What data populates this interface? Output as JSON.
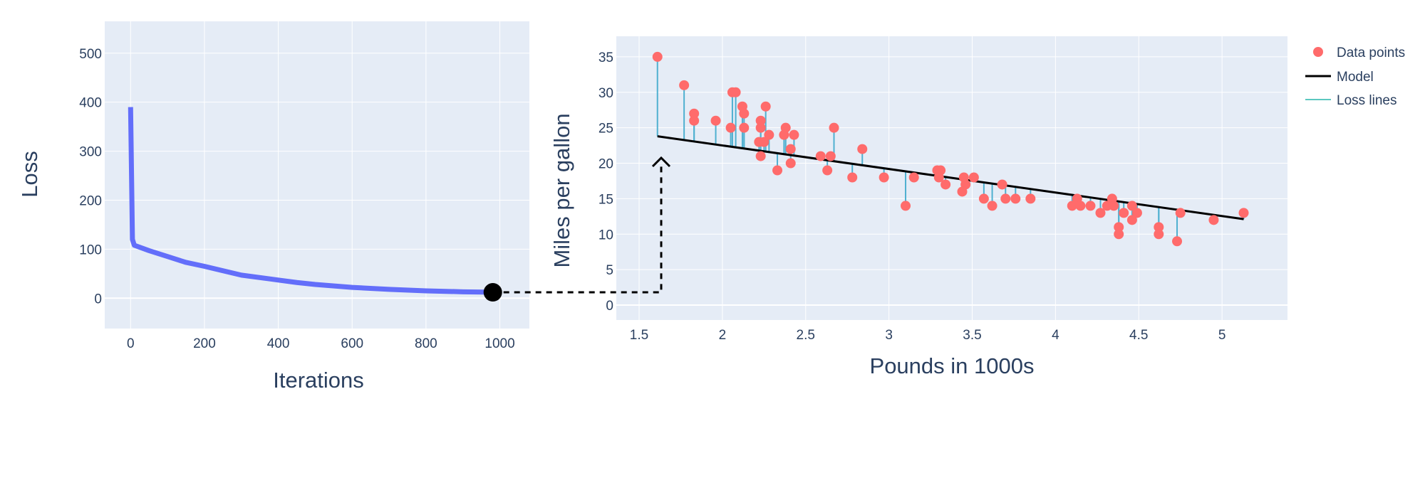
{
  "colors": {
    "plot_bg": "#E5ECF6",
    "grid": "#ffffff",
    "text": "#2a3f5f",
    "loss_curve": "#636EFA",
    "data_points": "#FF6B6B",
    "model": "#000000",
    "loss_lines": "#4FB0D0",
    "loss_lines_legend": "#5CC8C0",
    "connector": "#000000"
  },
  "chart_data": [
    {
      "type": "line",
      "xlabel": "Iterations",
      "ylabel": "Loss",
      "xlim": [
        -70,
        1080
      ],
      "ylim": [
        -62,
        565
      ],
      "xticks": [
        "0",
        "200",
        "400",
        "600",
        "800",
        "1000"
      ],
      "yticks": [
        "0",
        "100",
        "200",
        "300",
        "400",
        "500"
      ],
      "xtick_values": [
        0,
        200,
        400,
        600,
        800,
        1000
      ],
      "ytick_values": [
        0,
        100,
        200,
        300,
        400,
        500
      ],
      "grid": true,
      "series": [
        {
          "x": [
            0,
            5,
            10,
            50,
            100,
            150,
            200,
            300,
            400,
            450,
            500,
            600,
            700,
            800,
            900,
            1000
          ],
          "y": [
            390,
            120,
            108,
            97,
            85,
            73,
            65,
            47,
            37,
            32,
            28,
            22,
            18,
            15,
            13,
            12
          ]
        }
      ],
      "highlight_point": {
        "x": 981,
        "y": 12
      }
    },
    {
      "type": "scatter",
      "xlabel": "Pounds in 1000s",
      "ylabel": "Miles per gallon",
      "xlim": [
        1.363,
        5.393
      ],
      "ylim": [
        -2.1,
        37.9
      ],
      "xticks": [
        "1.5",
        "2",
        "2.5",
        "3",
        "3.5",
        "4",
        "4.5",
        "5"
      ],
      "yticks": [
        "0",
        "5",
        "10",
        "15",
        "20",
        "25",
        "30",
        "35"
      ],
      "xtick_values": [
        1.5,
        2,
        2.5,
        3,
        3.5,
        4,
        4.5,
        5
      ],
      "ytick_values": [
        0,
        5,
        10,
        15,
        20,
        25,
        30,
        35
      ],
      "grid": true,
      "legend_placement": "right",
      "legend": [
        "Data points",
        "Model",
        "Loss lines"
      ],
      "model": {
        "slope": -3.32,
        "intercept": 29.15,
        "x_range": [
          1.61,
          5.13
        ]
      },
      "points": [
        [
          1.61,
          35
        ],
        [
          1.77,
          31
        ],
        [
          1.83,
          27
        ],
        [
          1.83,
          26
        ],
        [
          1.96,
          26
        ],
        [
          2.05,
          25
        ],
        [
          2.06,
          30
        ],
        [
          2.08,
          30
        ],
        [
          2.12,
          28
        ],
        [
          2.13,
          27
        ],
        [
          2.13,
          25
        ],
        [
          2.23,
          26
        ],
        [
          2.23,
          25
        ],
        [
          2.22,
          23
        ],
        [
          2.23,
          21
        ],
        [
          2.26,
          28
        ],
        [
          2.25,
          23
        ],
        [
          2.28,
          24
        ],
        [
          2.33,
          19
        ],
        [
          2.38,
          25
        ],
        [
          2.37,
          24
        ],
        [
          2.41,
          22
        ],
        [
          2.41,
          20
        ],
        [
          2.43,
          24
        ],
        [
          2.59,
          21
        ],
        [
          2.65,
          21
        ],
        [
          2.63,
          19
        ],
        [
          2.67,
          25
        ],
        [
          2.78,
          18
        ],
        [
          2.84,
          22
        ],
        [
          2.97,
          18
        ],
        [
          3.1,
          14
        ],
        [
          3.15,
          18
        ],
        [
          3.29,
          19
        ],
        [
          3.31,
          19
        ],
        [
          3.3,
          18
        ],
        [
          3.34,
          17
        ],
        [
          3.45,
          18
        ],
        [
          3.46,
          17
        ],
        [
          3.44,
          16
        ],
        [
          3.51,
          18
        ],
        [
          3.57,
          15
        ],
        [
          3.62,
          14
        ],
        [
          3.68,
          17
        ],
        [
          3.7,
          15
        ],
        [
          3.76,
          15
        ],
        [
          3.85,
          15
        ],
        [
          4.1,
          14
        ],
        [
          4.13,
          15
        ],
        [
          4.15,
          14
        ],
        [
          4.21,
          14
        ],
        [
          4.27,
          13
        ],
        [
          4.31,
          14
        ],
        [
          4.34,
          15
        ],
        [
          4.35,
          14
        ],
        [
          4.38,
          11
        ],
        [
          4.38,
          10
        ],
        [
          4.41,
          13
        ],
        [
          4.46,
          14
        ],
        [
          4.46,
          12
        ],
        [
          4.49,
          13
        ],
        [
          4.62,
          11
        ],
        [
          4.62,
          10
        ],
        [
          4.73,
          9
        ],
        [
          4.75,
          13
        ],
        [
          4.95,
          12
        ],
        [
          5.13,
          13
        ]
      ]
    }
  ]
}
